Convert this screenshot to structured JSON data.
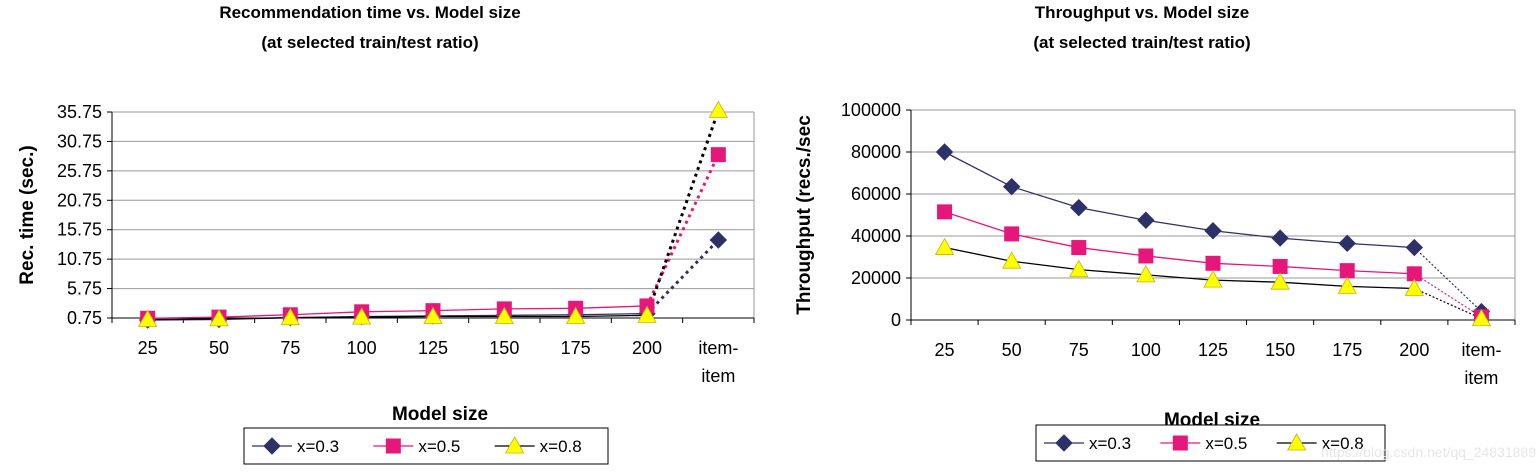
{
  "chart_data": [
    {
      "type": "line",
      "title": "Recommendation time vs. Model size",
      "subtitle": "(at selected train/test ratio)",
      "xlabel": "Model size",
      "ylabel": "Rec. time (sec.)",
      "categories": [
        "25",
        "50",
        "75",
        "100",
        "125",
        "150",
        "175",
        "200",
        "item-item"
      ],
      "yticks": [
        "0.75",
        "5.75",
        "10.75",
        "15.75",
        "20.75",
        "25.75",
        "30.75",
        "35.75"
      ],
      "ylim": [
        0.75,
        35.75
      ],
      "grid": true,
      "legend": "bottom",
      "series": [
        {
          "name": "x=0.3",
          "values": [
            0.4,
            0.5,
            0.8,
            1.0,
            1.1,
            1.2,
            1.3,
            1.5,
            14.0
          ],
          "color": "#2e3168",
          "marker": "diamond"
        },
        {
          "name": "x=0.5",
          "values": [
            0.7,
            0.9,
            1.3,
            1.8,
            2.0,
            2.3,
            2.4,
            2.8,
            28.5
          ],
          "color": "#e6177b",
          "marker": "square"
        },
        {
          "name": "x=0.8",
          "values": [
            0.5,
            0.6,
            0.8,
            0.9,
            1.0,
            1.0,
            1.0,
            1.2,
            36.0
          ],
          "color": "#000000",
          "marker": "triangle"
        }
      ]
    },
    {
      "type": "line",
      "title": "Throughput vs. Model size",
      "subtitle": "(at selected train/test ratio)",
      "xlabel": "Model size",
      "ylabel": "Throughput (recs./sec",
      "categories": [
        "25",
        "50",
        "75",
        "100",
        "125",
        "150",
        "175",
        "200",
        "item-item"
      ],
      "yticks": [
        "0",
        "20000",
        "40000",
        "60000",
        "80000",
        "100000"
      ],
      "ylim": [
        0,
        100000
      ],
      "grid": true,
      "legend": "bottom",
      "series": [
        {
          "name": "x=0.3",
          "values": [
            80000,
            63500,
            53500,
            47500,
            42500,
            39000,
            36500,
            34500,
            4000
          ],
          "color": "#2e3168",
          "marker": "diamond"
        },
        {
          "name": "x=0.5",
          "values": [
            51500,
            41000,
            34500,
            30500,
            27000,
            25500,
            23500,
            22000,
            1500
          ],
          "color": "#e6177b",
          "marker": "square"
        },
        {
          "name": "x=0.8",
          "values": [
            34500,
            28000,
            24000,
            21500,
            19000,
            18000,
            16000,
            15000,
            700
          ],
          "color": "#000000",
          "marker": "triangle"
        }
      ]
    }
  ],
  "colors": {
    "triangle_fill": "#ffff00",
    "grid": "#999999",
    "axis": "#000000"
  },
  "watermark": "https://blog.csdn.net/qq_24831889"
}
